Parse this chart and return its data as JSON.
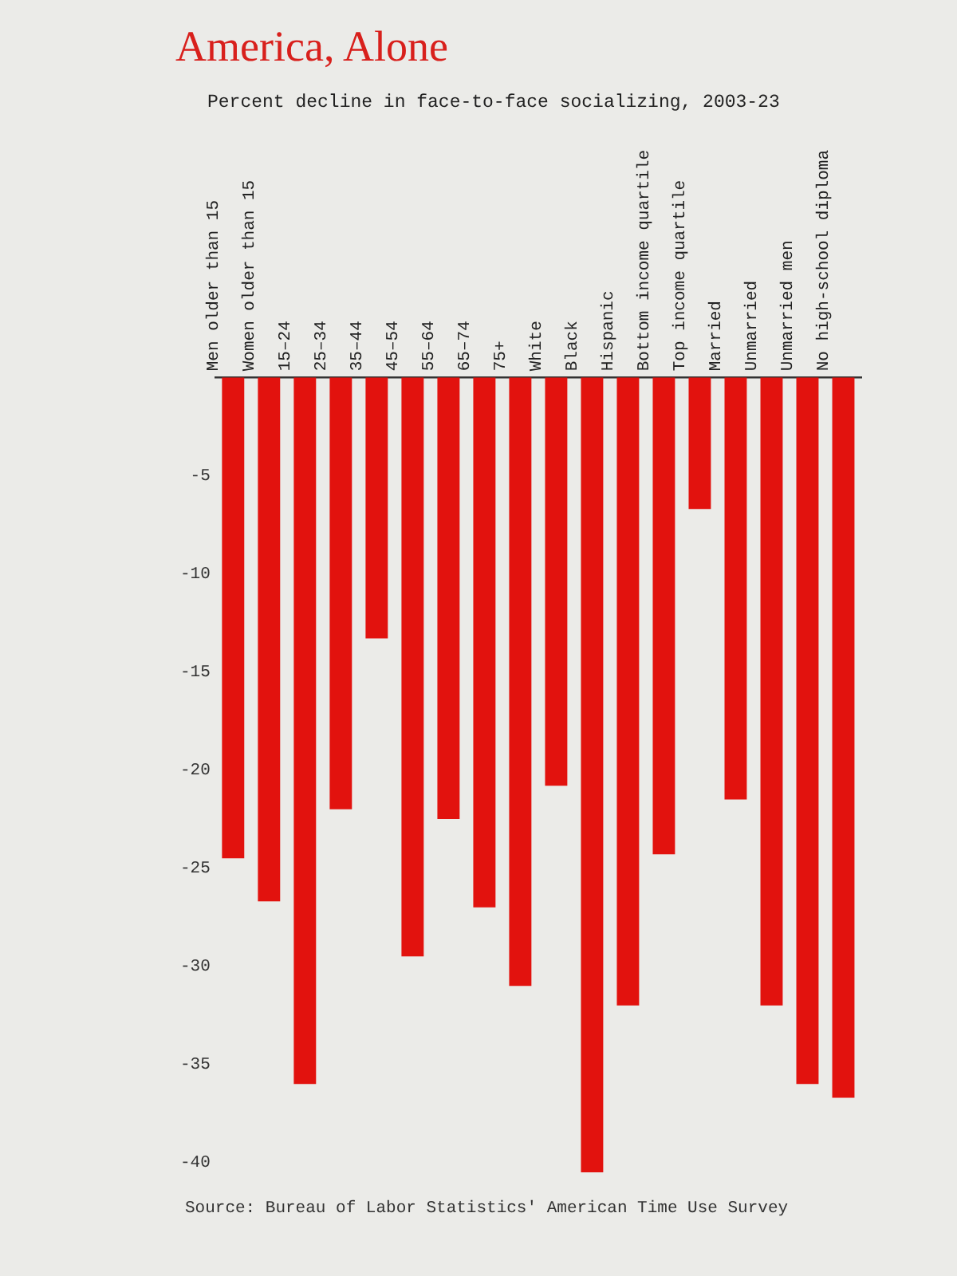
{
  "chart_data": {
    "type": "bar",
    "title": "America, Alone",
    "subtitle": "Percent decline in face-to-face socializing, 2003-23",
    "categories": [
      "Men older than 15",
      "Women older than 15",
      "15–24",
      "25–34",
      "35–44",
      "45–54",
      "55–64",
      "65–74",
      "75+",
      "White",
      "Black",
      "Hispanic",
      "Bottom income quartile",
      "Top income quartile",
      "Married",
      "Unmarried",
      "Unmarried men",
      "No high-school diploma"
    ],
    "values": [
      -24.5,
      -26.7,
      -36,
      -22,
      -13.3,
      -29.5,
      -22.5,
      -27,
      -31,
      -20.8,
      -40.5,
      -32,
      -24.3,
      -6.7,
      -21.5,
      -32,
      -36,
      -36.7
    ],
    "color": "#e2120e",
    "ylim": [
      -40.5,
      0
    ],
    "yticks": [
      -5,
      -10,
      -15,
      -20,
      -25,
      -30,
      -35,
      -40
    ],
    "grid": false,
    "legend": false,
    "annotations": [
      "Source: Bureau of Labor Statistics' American Time Use Survey"
    ]
  }
}
